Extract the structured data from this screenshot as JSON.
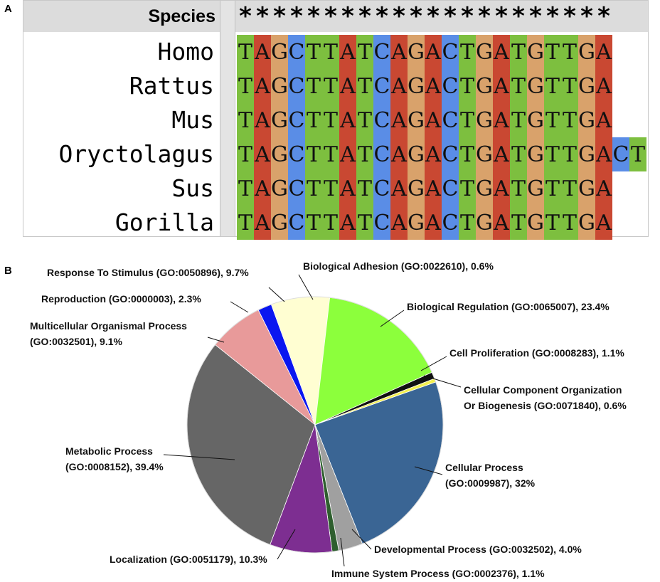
{
  "panels": {
    "a": "A",
    "b": "B"
  },
  "alignment": {
    "header_label": "Species",
    "consensus_symbol": "*",
    "consensus_count": 22,
    "base_colors": {
      "A": "#c94832",
      "T": "#7dbf3f",
      "G": "#d9a26b",
      "C": "#5a8de6"
    },
    "rows": [
      {
        "name": "Homo",
        "sequence": "TAGCTTATCAGACTGATGTTGA"
      },
      {
        "name": "Rattus",
        "sequence": "TAGCTTATCAGACTGATGTTGA"
      },
      {
        "name": "Mus",
        "sequence": "TAGCTTATCAGACTGATGTTGA"
      },
      {
        "name": "Oryctolagus",
        "sequence": "TAGCTTATCAGACTGATGTTGACT"
      },
      {
        "name": "Sus",
        "sequence": "TAGCTTATCAGACTGATGTTGA"
      },
      {
        "name": "Gorilla",
        "sequence": "TAGCTTATCAGACTGATGTTGA"
      }
    ]
  },
  "chart_data": {
    "type": "pie",
    "title": "",
    "slices": [
      {
        "label": "Biological Adhesion (GO:0022610), 0.6%",
        "value": 0.6,
        "color": "#c00000"
      },
      {
        "label": "Biological Regulation (GO:0065007), 23.4%",
        "value": 23.4,
        "color": "#8cff3c"
      },
      {
        "label": "Cell Proliferation (GO:0008283), 1.1%",
        "value": 1.1,
        "color": "#111111"
      },
      {
        "label": "Cellular Component Organization Or Biogenesis (GO:0071840), 0.6%",
        "value": 0.6,
        "color": "#f3f052"
      },
      {
        "label": "Cellular Process (GO:0009987), 32%",
        "value": 32,
        "color": "#3a6594"
      },
      {
        "label": "Developmental Process (GO:0032502), 4.0%",
        "value": 4.0,
        "color": "#a0a0a0"
      },
      {
        "label": "Immune System Process (GO:0002376), 1.1%",
        "value": 1.1,
        "color": "#2e5e2e"
      },
      {
        "label": "Localization (GO:0051179), 10.3%",
        "value": 10.3,
        "color": "#7d2e91"
      },
      {
        "label": "Metabolic Process (GO:0008152), 39.4%",
        "value": 39.4,
        "color": "#666666"
      },
      {
        "label": "Multicellular Organismal Process (GO:0032501), 9.1%",
        "value": 9.1,
        "color": "#e89a9a"
      },
      {
        "label": "Reproduction (GO:0000003), 2.3%",
        "value": 2.3,
        "color": "#0a16f0"
      },
      {
        "label": "Response To Stimulus (GO:0050896), 9.7%",
        "value": 9.7,
        "color": "#fffed2"
      }
    ],
    "slice_fractions": [
      0.0046,
      0.1783,
      0.0084,
      0.0046,
      0.2439,
      0.0305,
      0.0084,
      0.0785,
      0.3003,
      0.0694,
      0.0175,
      0.0739
    ],
    "label_lines": [
      [
        "Biological Adhesion (GO:0022610), 0.6%"
      ],
      [
        "Biological Regulation (GO:0065007), 23.4%"
      ],
      [
        "Cell Proliferation (GO:0008283), 1.1%"
      ],
      [
        "Cellular Component Organization",
        "Or Biogenesis (GO:0071840), 0.6%"
      ],
      [
        "Cellular Process",
        "(GO:0009987), 32%"
      ],
      [
        "Developmental Process (GO:0032502), 4.0%"
      ],
      [
        "Immune System Process (GO:0002376), 1.1%"
      ],
      [
        "Localization (GO:0051179), 10.3%"
      ],
      [
        "Metabolic Process",
        "(GO:0008152), 39.4%"
      ],
      [
        "Multicellular Organismal Process",
        "(GO:0032501), 9.1%"
      ],
      [
        "Reproduction (GO:0000003), 2.3%"
      ],
      [
        "Response To Stimulus (GO:0050896), 9.7%"
      ]
    ]
  }
}
